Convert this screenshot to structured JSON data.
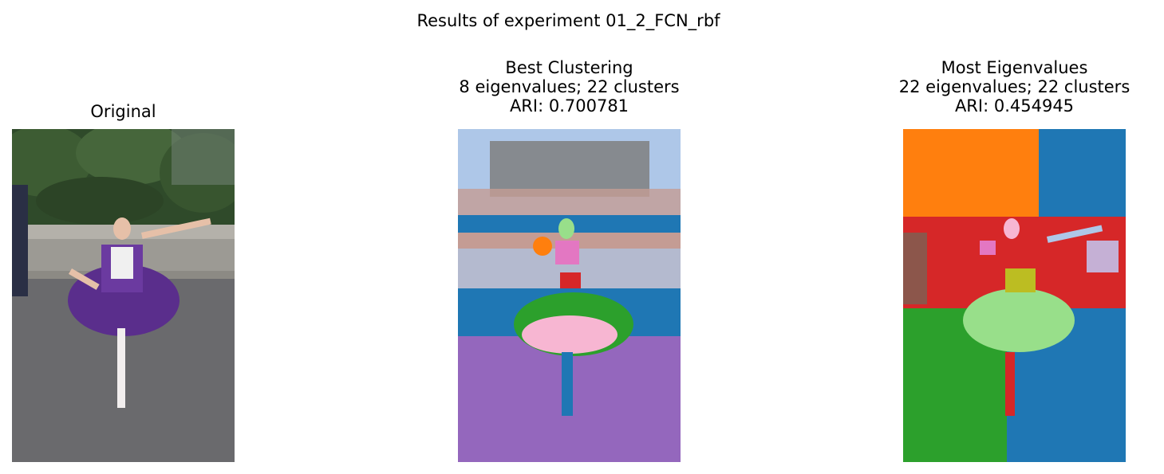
{
  "figure": {
    "suptitle": "Results of experiment 01_2_FCN_rbf"
  },
  "panels": [
    {
      "title_lines": [
        "Original"
      ]
    },
    {
      "title_lines": [
        "Best Clustering",
        "8 eigenvalues; 22 clusters",
        "ARI: 0.700781"
      ]
    },
    {
      "title_lines": [
        "Most Eigenvalues",
        "22 eigenvalues; 22 clusters",
        "ARI: 0.454945"
      ]
    }
  ],
  "colors": {
    "tab_blue": "#1f77b4",
    "tab_orange": "#ff7f0e",
    "tab_green": "#2ca02c",
    "tab_red": "#d62728",
    "tab_purple": "#9467bd",
    "tab_brown": "#8c564b",
    "tab_pink": "#e377c2",
    "tab_gray": "#7f7f7f",
    "tab_olive": "#bcbd22",
    "light_blue": "#aec7e8",
    "light_green": "#98df8a",
    "light_pink": "#f7b6d2",
    "light_brown": "#c49c94",
    "dress_purple": "#5a2e8c"
  }
}
